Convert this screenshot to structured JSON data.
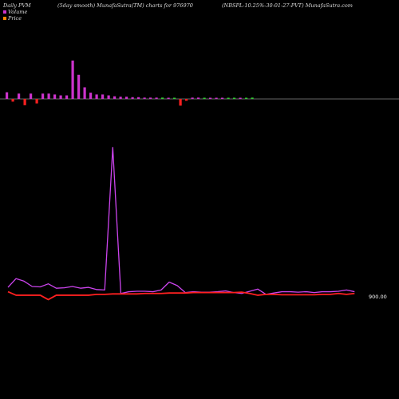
{
  "header": {
    "left": "Daily PVM",
    "middle": "(5day smooth) MunafaSutra(TM) charts for 976970",
    "right": "(NBSPL-10.25%-30-01-27-PVT) MunafaSutra.com"
  },
  "legend": {
    "volume_label": "Volume",
    "price_label": "Price",
    "volume_color": "#cc33cc",
    "price_color": "#ff8800"
  },
  "price_axis_label": "900.00",
  "colors": {
    "volume_up": "#cc33cc",
    "volume_down": "#ff2020",
    "volume_flat": "#33cc33",
    "volume_line": "#cc44ee",
    "price_line": "#ff2020",
    "baseline": "#888888",
    "background": "#000000"
  },
  "chart_data": [
    {
      "type": "bar",
      "title": "Volume",
      "series": [
        {
          "name": "Volume",
          "values": [
            1.5,
            -0.6,
            1.2,
            -1.4,
            1.2,
            -1.0,
            1.2,
            1.2,
            1.0,
            0.8,
            0.8,
            8.6,
            5.4,
            2.6,
            1.4,
            1.0,
            1.0,
            0.8,
            0.6,
            0.5,
            0.5,
            0.4,
            0.4,
            0.3,
            0.3,
            0.3,
            0.3,
            0.2,
            0.2,
            -1.5,
            -0.4,
            0.3,
            0.3,
            0.2,
            0.1,
            0.1,
            0.1,
            0.1,
            0.2,
            0.2,
            0.2,
            0.3
          ],
          "direction": [
            "up",
            "down",
            "up",
            "down",
            "up",
            "down",
            "up",
            "up",
            "up",
            "up",
            "up",
            "up",
            "up",
            "up",
            "up",
            "up",
            "up",
            "up",
            "up",
            "up",
            "up",
            "up",
            "up",
            "up",
            "up",
            "up",
            "flat",
            "up",
            "flat",
            "down",
            "down",
            "up",
            "up",
            "flat",
            "up",
            "up",
            "up",
            "flat",
            "flat",
            "up",
            "flat",
            "flat"
          ]
        }
      ],
      "ylim": [
        -2,
        9
      ]
    },
    {
      "type": "line",
      "title": "Price / Volume (5 day smooth)",
      "series": [
        {
          "name": "Volume",
          "values": [
            40,
            60,
            54,
            42,
            41,
            48,
            38,
            39,
            42,
            38,
            40,
            35,
            34,
            360,
            26,
            30,
            31,
            31,
            30,
            34,
            52,
            44,
            28,
            30,
            29,
            29,
            30,
            32,
            28,
            26,
            31,
            36,
            24,
            27,
            30,
            30,
            29,
            30,
            28,
            30,
            30,
            31,
            34,
            30
          ]
        },
        {
          "name": "Price",
          "values": [
            30,
            22,
            22,
            22,
            22,
            12,
            22,
            22,
            22,
            22,
            22,
            24,
            24,
            25,
            25,
            25,
            25,
            26,
            26,
            26,
            27,
            27,
            27,
            28,
            28,
            28,
            28,
            28,
            28,
            29,
            26,
            22,
            24,
            24,
            23,
            23,
            23,
            23,
            23,
            24,
            24,
            26,
            24,
            26
          ]
        }
      ],
      "ylim": [
        0,
        380
      ]
    }
  ]
}
